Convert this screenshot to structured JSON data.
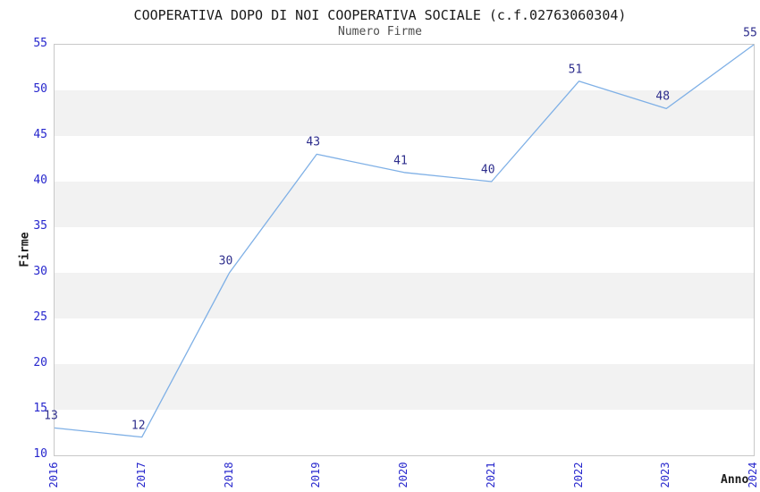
{
  "chart_data": {
    "type": "line",
    "title": "COOPERATIVA DOPO DI NOI COOPERATIVA SOCIALE (c.f.02763060304)",
    "subtitle": "Numero Firme",
    "xlabel": "Anno",
    "ylabel": "Firme",
    "categories": [
      "2016",
      "2017",
      "2018",
      "2019",
      "2020",
      "2021",
      "2022",
      "2023",
      "2024"
    ],
    "series": [
      {
        "name": "Numero Firme",
        "values": [
          13,
          12,
          30,
          43,
          41,
          40,
          51,
          48,
          55
        ]
      }
    ],
    "ylim": [
      10,
      55
    ],
    "ytick_step": 5,
    "yticks": [
      10,
      15,
      20,
      25,
      30,
      35,
      40,
      45,
      50,
      55
    ],
    "legend_position": "none",
    "grid": "horizontal-zebra-bands",
    "point_labels_visible": true,
    "colors": {
      "line": "#7fb0e6",
      "tick_label": "#2727cd",
      "point_label": "#2d2d8c",
      "band_gray": "#f2f2f2",
      "plot_border": "#c8c8c8",
      "title": "#1a1a1a",
      "subtitle": "#4d4d4d",
      "background": "#ffffff"
    }
  }
}
